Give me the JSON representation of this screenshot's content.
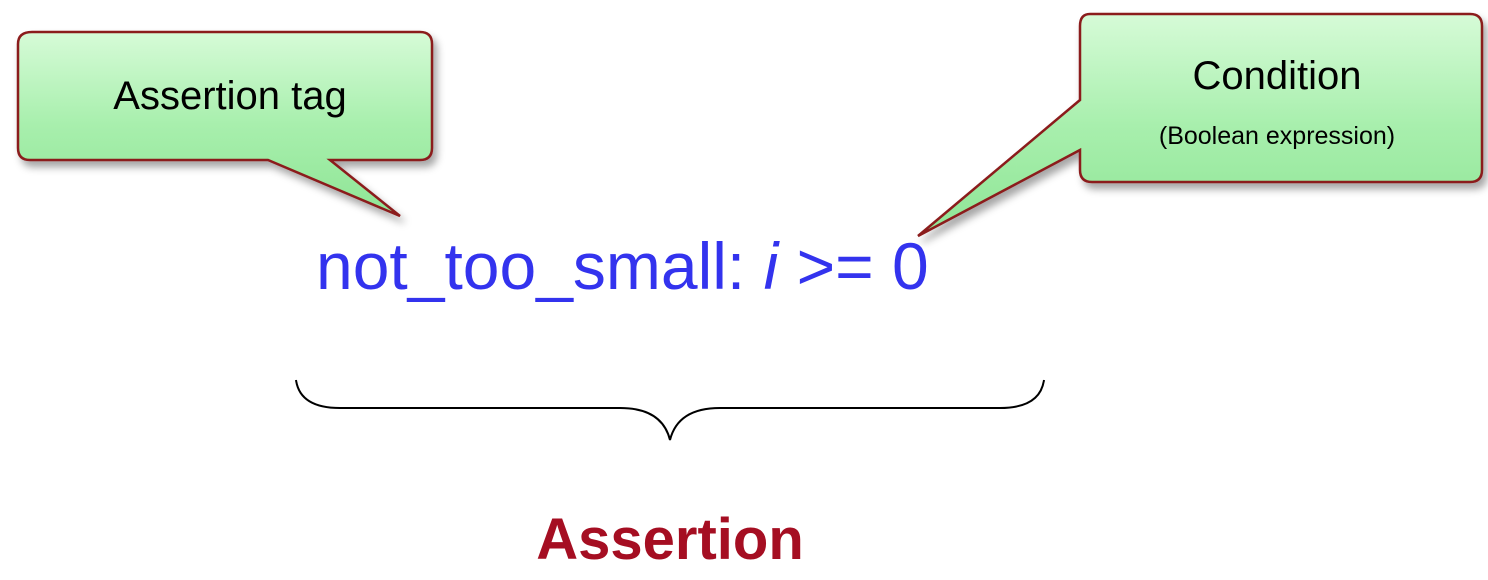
{
  "callouts": {
    "assertion_tag": "Assertion tag",
    "condition_title": "Condition",
    "condition_subtitle": "(Boolean expression)"
  },
  "code": {
    "tag": "not_too_small:",
    "variable": "i",
    "operator_and_value": ">= 0"
  },
  "assertion_label": "Assertion",
  "colors": {
    "callout_fill": "#a4ecaa",
    "callout_border": "#8b1a1a",
    "code_text": "#3333ee",
    "label_text": "#a50e22"
  }
}
